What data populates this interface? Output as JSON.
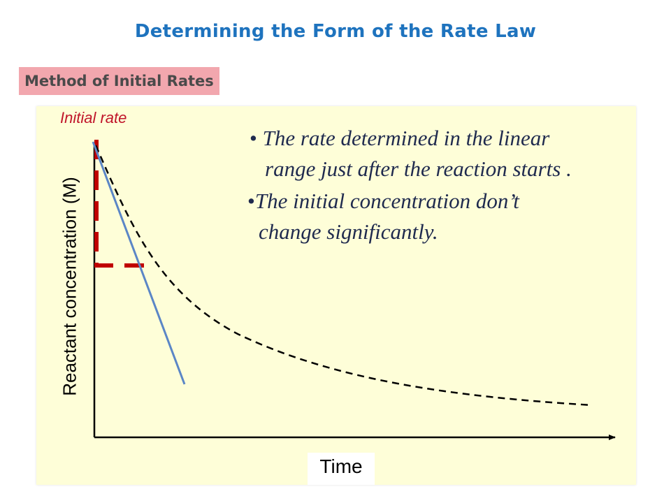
{
  "slide": {
    "title": "Determining the Form of the Rate Law",
    "subtitle": "Method of Initial Rates"
  },
  "diagram": {
    "initial_rate_label": "Initial rate",
    "y_axis_label": "Reactant concentration (M)",
    "x_axis_label": "Time"
  },
  "bullets": [
    {
      "marker": "•",
      "line1": "The rate determined in the linear",
      "line2": "range just after the reaction starts ."
    },
    {
      "marker": "•",
      "line1": "The initial concentration don’t",
      "line2": "change significantly."
    }
  ],
  "colors": {
    "title": "#1e73be",
    "subtitle_bg": "#f2a7ae",
    "panel_bg": "#fefed8",
    "tangent_line": "#5b86c6",
    "guide_dash": "#c00000",
    "curve": "#000000",
    "bullet_text": "#1f2a4e"
  }
}
